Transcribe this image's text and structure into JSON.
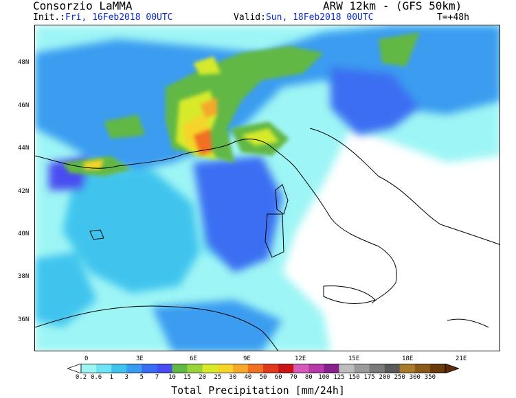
{
  "header": {
    "brand": "Consorzio LaMMA",
    "model": "ARW 12km - (GFS 50km)",
    "init_label": "Init.:",
    "init_value": "Fri, 16Feb2018 00UTC",
    "valid_label": "Valid:",
    "valid_value": "Sun, 18Feb2018 00UTC",
    "timestep": "T=+48h"
  },
  "map": {
    "lat_labels": [
      "48N",
      "46N",
      "44N",
      "42N",
      "40N",
      "38N",
      "36N"
    ],
    "lon_labels": [
      "0",
      "3E",
      "6E",
      "9E",
      "12E",
      "15E",
      "18E",
      "21E"
    ]
  },
  "colorbar": {
    "title": "Total Precipitation [mm/24h]",
    "values": [
      "0.2",
      "0.6",
      "1",
      "3",
      "5",
      "7",
      "10",
      "15",
      "20",
      "25",
      "30",
      "40",
      "50",
      "60",
      "70",
      "80",
      "100",
      "125",
      "150",
      "175",
      "200",
      "250",
      "300",
      "350"
    ],
    "colors": [
      "#9ef5f5",
      "#6fe3f3",
      "#3fc4ee",
      "#3a9cf0",
      "#3a6ef2",
      "#4a4ef0",
      "#62b844",
      "#9ad23c",
      "#d6ea2a",
      "#f5d52a",
      "#f5a82a",
      "#f27022",
      "#e03a1e",
      "#c81414",
      "#d85ab8",
      "#b53aa8",
      "#8a1f8e",
      "#bdbdbd",
      "#9a9a9a",
      "#7a7a7a",
      "#5a5a5a",
      "#a87a2a",
      "#8a5a1a",
      "#6a3a0a"
    ],
    "low_end_color": "#ffffff",
    "high_end_color": "#5a2a08"
  }
}
